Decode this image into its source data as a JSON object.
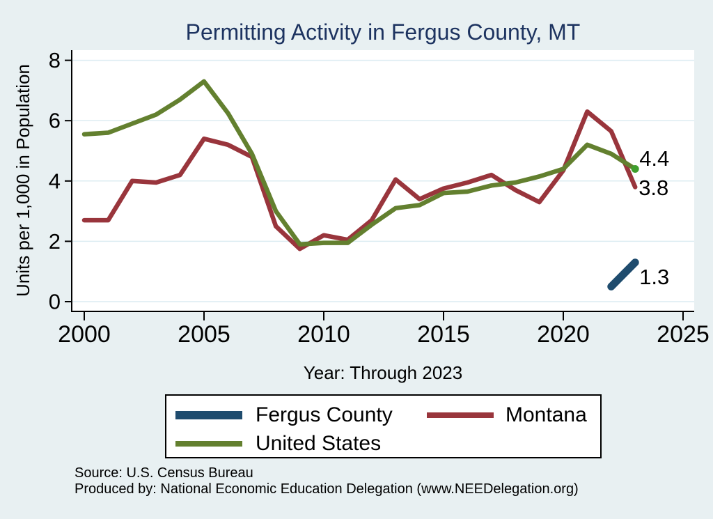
{
  "chart_data": {
    "type": "line",
    "title": "Permitting Activity in Fergus County, MT",
    "xlabel": "Year: Through 2023",
    "ylabel": "Units per 1,000 in Population",
    "xlim": [
      2000,
      2025
    ],
    "ylim": [
      0,
      8
    ],
    "xticks": [
      2000,
      2005,
      2010,
      2015,
      2020,
      2025
    ],
    "yticks": [
      0,
      2,
      4,
      6,
      8
    ],
    "grid": "horizontal",
    "legend_position": "bottom",
    "series": [
      {
        "name": "Fergus County",
        "color": "#1f4c6e",
        "linewidth": 11,
        "x": [
          2022,
          2023
        ],
        "values": [
          0.5,
          1.3
        ]
      },
      {
        "name": "Montana",
        "color": "#99353c",
        "linewidth": 6.5,
        "x": [
          2000,
          2001,
          2002,
          2003,
          2004,
          2005,
          2006,
          2007,
          2008,
          2009,
          2010,
          2011,
          2012,
          2013,
          2014,
          2015,
          2016,
          2017,
          2018,
          2019,
          2020,
          2021,
          2022,
          2023
        ],
        "values": [
          2.7,
          2.7,
          4.0,
          3.95,
          4.2,
          5.4,
          5.2,
          4.8,
          2.5,
          1.75,
          2.2,
          2.05,
          2.7,
          4.05,
          3.4,
          3.75,
          3.95,
          4.2,
          3.7,
          3.3,
          4.35,
          6.3,
          5.65,
          3.8
        ]
      },
      {
        "name": "United States",
        "color": "#63802f",
        "linewidth": 6.5,
        "x": [
          2000,
          2001,
          2002,
          2003,
          2004,
          2005,
          2006,
          2007,
          2008,
          2009,
          2010,
          2011,
          2012,
          2013,
          2014,
          2015,
          2016,
          2017,
          2018,
          2019,
          2020,
          2021,
          2022,
          2023
        ],
        "values": [
          5.55,
          5.6,
          5.9,
          6.2,
          6.7,
          7.3,
          6.25,
          4.9,
          3.0,
          1.9,
          1.95,
          1.95,
          2.55,
          3.1,
          3.2,
          3.6,
          3.65,
          3.85,
          3.95,
          4.15,
          4.4,
          5.2,
          4.9,
          4.4
        ],
        "end_marker": {
          "shape": "circle",
          "color": "#3f9e2d"
        }
      }
    ],
    "end_labels": [
      {
        "series": "United States",
        "text": "4.4"
      },
      {
        "series": "Montana",
        "text": "3.8"
      },
      {
        "series": "Fergus County",
        "text": "1.3"
      }
    ]
  },
  "legend": {
    "items": [
      {
        "label": "Fergus County",
        "color": "#1f4c6e"
      },
      {
        "label": "Montana",
        "color": "#99353c"
      },
      {
        "label": "United States",
        "color": "#63802f"
      }
    ]
  },
  "source": {
    "line1": "Source: U.S. Census Bureau",
    "line2": "Produced by: National Economic Education Delegation (www.NEEDelegation.org)"
  },
  "colors": {
    "background": "#e8f0f2",
    "plot_background": "#ffffff",
    "grid": "#dcecf2",
    "axis": "#000000",
    "title": "#1d3360"
  }
}
